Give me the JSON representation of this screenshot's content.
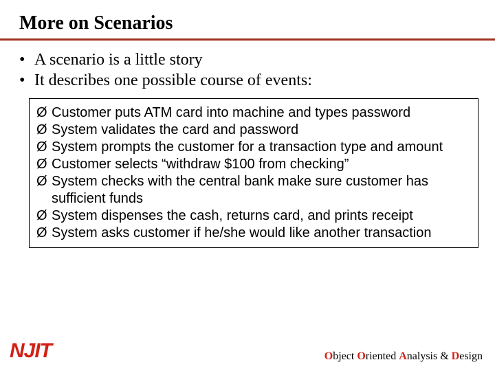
{
  "title": "More on Scenarios",
  "intro": {
    "bullet_char": "•",
    "items": [
      "A scenario is a little story",
      "It describes one possible course of events:"
    ]
  },
  "scenario": {
    "bullet_char": "Ø",
    "items": [
      "Customer puts ATM card into machine and types password",
      "System validates the card and password",
      "System prompts the customer for a transaction type and amount",
      "Customer selects “withdraw $100 from checking”",
      "System checks with the central bank make sure customer has sufficient funds",
      "System dispenses the cash, returns card, and prints receipt",
      "System asks customer if he/she would like another transaction"
    ]
  },
  "logo_text": "NJIT",
  "footer": {
    "o1": "O",
    "bject": "bject ",
    "o2": "O",
    "riented": "riented ",
    "a": "A",
    "nalysis": "nalysis & ",
    "d": "D",
    "esign": "esign"
  },
  "colors": {
    "title_rule": "#a03020",
    "logo_red": "#d22015",
    "text": "#000000",
    "background": "#ffffff"
  }
}
